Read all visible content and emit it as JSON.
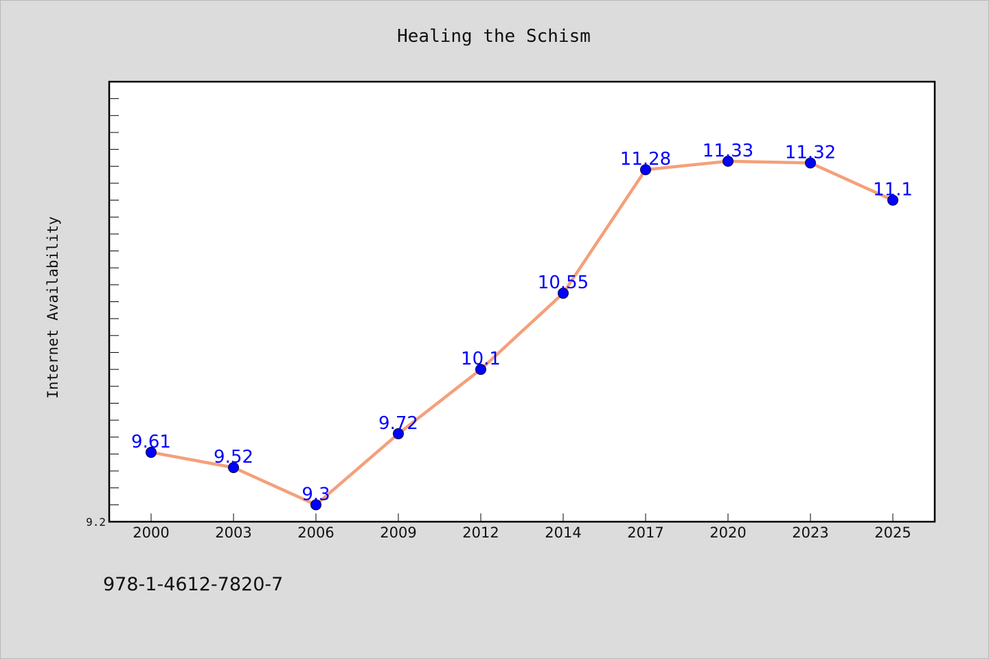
{
  "chart_data": {
    "type": "line",
    "title": "Healing the Schism",
    "xlabel": "",
    "ylabel": "Internet Availability",
    "categories": [
      "2000",
      "2003",
      "2006",
      "2009",
      "2012",
      "2014",
      "2017",
      "2020",
      "2023",
      "2025"
    ],
    "series": [
      {
        "values": [
          9.61,
          9.52,
          9.3,
          9.72,
          10.1,
          10.55,
          11.28,
          11.33,
          11.32,
          11.1
        ],
        "data_labels": [
          "9.61",
          "9.52",
          "9.3",
          "9.72",
          "10.1",
          "10.55",
          "11.28",
          "11.33",
          "11.32",
          "11.1"
        ],
        "line_color": "#f4a07a",
        "marker_color": "#0000ff"
      }
    ],
    "ylim": [
      9.2,
      11.8
    ],
    "y_tick_labels": [
      "9.2"
    ],
    "minor_tick_step": 0.1,
    "grid": false,
    "legend": "none"
  },
  "footer": {
    "isbn": "978-1-4612-7820-7"
  }
}
